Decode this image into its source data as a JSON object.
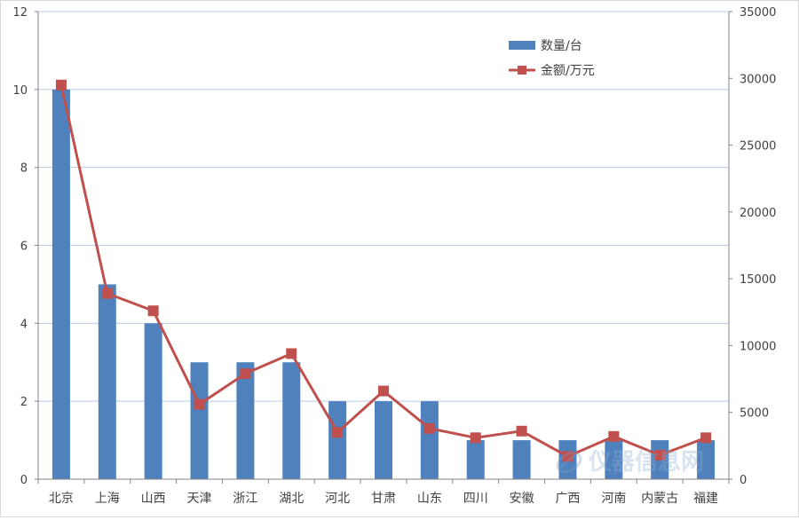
{
  "chart_data": {
    "type": "bar",
    "categories": [
      "北京",
      "上海",
      "山西",
      "天津",
      "浙江",
      "湖北",
      "河北",
      "甘肃",
      "山东",
      "四川",
      "安徽",
      "广西",
      "河南",
      "内蒙古",
      "福建"
    ],
    "series": [
      {
        "name": "数量/台",
        "type": "bar",
        "axis": "left",
        "color": "#4f81bd",
        "values": [
          10,
          5,
          4,
          3,
          3,
          3,
          2,
          2,
          2,
          1,
          1,
          1,
          1,
          1,
          1
        ]
      },
      {
        "name": "金额/万元",
        "type": "line",
        "axis": "right",
        "color": "#c0504d",
        "values": [
          29500,
          13900,
          12600,
          5600,
          7900,
          9400,
          3500,
          6600,
          3800,
          3100,
          3600,
          1700,
          3200,
          1800,
          3100
        ]
      }
    ],
    "y_left": {
      "ylim": [
        0,
        12
      ],
      "ticks": [
        0,
        2,
        4,
        6,
        8,
        10,
        12
      ]
    },
    "y_right": {
      "ylim": [
        0,
        35000
      ],
      "ticks": [
        0,
        5000,
        10000,
        15000,
        20000,
        25000,
        30000,
        35000
      ]
    },
    "grid": true,
    "legend_position": "top-right",
    "title": "",
    "xlabel": "",
    "ylabel": ""
  },
  "watermark": "仪器信息网"
}
